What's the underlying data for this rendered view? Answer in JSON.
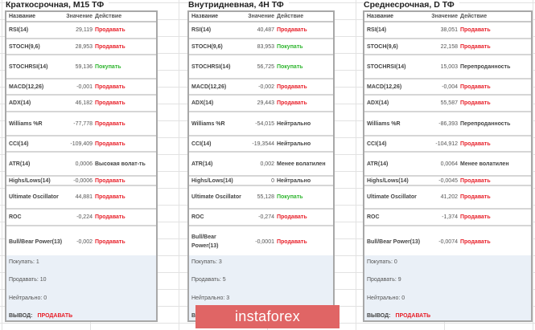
{
  "headers": {
    "name": "Название",
    "value": "Значение",
    "action": "Действие"
  },
  "panels": [
    {
      "title": "Краткосрочная, M15 ТФ",
      "rows": [
        {
          "name": "RSI(14)",
          "value": "29,119",
          "action": "Продавать",
          "type": "sell"
        },
        {
          "name": "STOCH(9,6)",
          "value": "28,953",
          "action": "Продавать",
          "type": "sell"
        },
        {
          "name": "STOCHRSI(14)",
          "value": "59,136",
          "action": "Покупать",
          "type": "buy"
        },
        {
          "name": "MACD(12,26)",
          "value": "-0,001",
          "action": "Продавать",
          "type": "sell"
        },
        {
          "name": "ADX(14)",
          "value": "46,182",
          "action": "Продавать",
          "type": "sell"
        },
        {
          "name": "Williams %R",
          "value": "-77,778",
          "action": "Продавать",
          "type": "sell"
        },
        {
          "name": "CCI(14)",
          "value": "-109,409",
          "action": "Продавать",
          "type": "sell"
        },
        {
          "name": "ATR(14)",
          "value": "0,0006",
          "action": "Высокая волат-ть",
          "type": "neu"
        },
        {
          "name": "Highs/Lows(14)",
          "value": "-0,0006",
          "action": "Продавать",
          "type": "sell"
        },
        {
          "name": "Ultimate Oscillator",
          "value": "44,881",
          "action": "Продавать",
          "type": "sell"
        },
        {
          "name": "ROC",
          "value": "-0,224",
          "action": "Продавать",
          "type": "sell"
        },
        {
          "name": "Bull/Bear Power(13)",
          "value": "-0,002",
          "action": "Продавать",
          "type": "sell"
        }
      ],
      "summary": {
        "buy": "Покупать: 1",
        "sell": "Продавать: 10",
        "neutral": "Нейтрально: 0",
        "conclusion_label": "ВЫВОД:",
        "conclusion": "ПРОДАВАТЬ"
      }
    },
    {
      "title": "Внутридневная, 4H ТФ",
      "rows": [
        {
          "name": "RSI(14)",
          "value": "40,487",
          "action": "Продавать",
          "type": "sell"
        },
        {
          "name": "STOCH(9,6)",
          "value": "83,953",
          "action": "Покупать",
          "type": "buy"
        },
        {
          "name": "STOCHRSI(14)",
          "value": "56,725",
          "action": "Покупать",
          "type": "buy"
        },
        {
          "name": "MACD(12,26)",
          "value": "-0,002",
          "action": "Продавать",
          "type": "sell"
        },
        {
          "name": "ADX(14)",
          "value": "29,443",
          "action": "Продавать",
          "type": "sell"
        },
        {
          "name": "Williams %R",
          "value": "-54,015",
          "action": "Нейтрально",
          "type": "neu"
        },
        {
          "name": "CCI(14)",
          "value": "-19,3544",
          "action": "Нейтрально",
          "type": "neu"
        },
        {
          "name": "ATR(14)",
          "value": "0,002",
          "action": "Менее волатилен",
          "type": "neu"
        },
        {
          "name": "Highs/Lows(14)",
          "value": "0",
          "action": "Нейтрально",
          "type": "neu"
        },
        {
          "name": "Ultimate Oscillator",
          "value": "55,128",
          "action": "Покупать",
          "type": "buy"
        },
        {
          "name": "ROC",
          "value": "-0,274",
          "action": "Продавать",
          "type": "sell"
        },
        {
          "name": "Bull/Bear Power(13)",
          "value": "-0,0001",
          "action": "Продавать",
          "type": "sell"
        }
      ],
      "summary": {
        "buy": "Покупать: 3",
        "sell": "Продавать: 5",
        "neutral": "Нейтрально: 3",
        "conclusion_label": "ВЫ"
      }
    },
    {
      "title": "Среднесрочная, D ТФ",
      "rows": [
        {
          "name": "RSI(14)",
          "value": "38,051",
          "action": "Продавать",
          "type": "sell"
        },
        {
          "name": "STOCH(9,6)",
          "value": "22,158",
          "action": "Продавать",
          "type": "sell"
        },
        {
          "name": "STOCHRSI(14)",
          "value": "15,003",
          "action": "Перепроданность",
          "type": "neu"
        },
        {
          "name": "MACD(12,26)",
          "value": "-0,004",
          "action": "Продавать",
          "type": "sell"
        },
        {
          "name": "ADX(14)",
          "value": "55,587",
          "action": "Продавать",
          "type": "sell"
        },
        {
          "name": "Williams %R",
          "value": "-86,393",
          "action": "Перепроданность",
          "type": "neu"
        },
        {
          "name": "CCI(14)",
          "value": "-104,912",
          "action": "Продавать",
          "type": "sell"
        },
        {
          "name": "ATR(14)",
          "value": "0,0064",
          "action": "Менее волатилен",
          "type": "neu"
        },
        {
          "name": "Highs/Lows(14)",
          "value": "-0,0045",
          "action": "Продавать",
          "type": "sell"
        },
        {
          "name": "Ultimate Oscillator",
          "value": "41,202",
          "action": "Продавать",
          "type": "sell"
        },
        {
          "name": "ROC",
          "value": "-1,374",
          "action": "Продавать",
          "type": "sell"
        },
        {
          "name": "Bull/Bear Power(13)",
          "value": "-0,0074",
          "action": "Продавать",
          "type": "sell"
        }
      ],
      "summary": {
        "buy": "Покупать: 0",
        "sell": "Продавать: 9",
        "neutral": "Нейтрально: 0",
        "conclusion_label": "ВЫВОД:",
        "conclusion": "ПРОДАВАТЬ"
      }
    }
  ],
  "watermark": "instaforex",
  "colors": {
    "sell": "#e8202a",
    "buy": "#2fb52f",
    "summary_bg": "#eaf0f7",
    "watermark_bg": "#e06565"
  }
}
